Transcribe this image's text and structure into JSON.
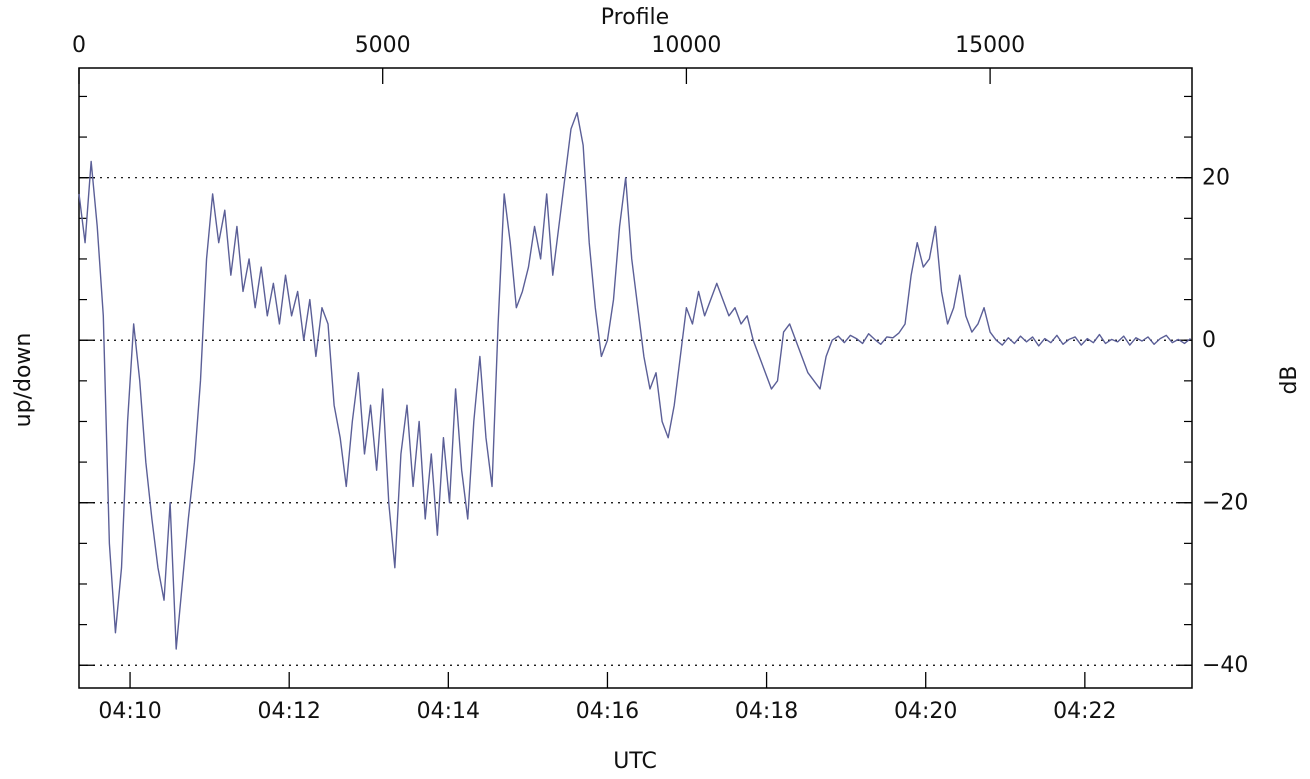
{
  "chart_data": {
    "type": "line",
    "x_label_top": "Profile",
    "x_label": "UTC",
    "y_label": "up/down",
    "y2_label": "dB",
    "color": "#5b5f97",
    "grid": true,
    "x": [
      0,
      100,
      200,
      300,
      400,
      500,
      600,
      700,
      800,
      900,
      1000,
      1100,
      1200,
      1300,
      1400,
      1500,
      1600,
      1700,
      1800,
      1900,
      2000,
      2100,
      2200,
      2300,
      2400,
      2500,
      2600,
      2700,
      2800,
      2900,
      3000,
      3100,
      3200,
      3300,
      3400,
      3500,
      3600,
      3700,
      3800,
      3900,
      4000,
      4100,
      4200,
      4300,
      4400,
      4500,
      4600,
      4700,
      4800,
      4900,
      5000,
      5100,
      5200,
      5300,
      5400,
      5500,
      5600,
      5700,
      5800,
      5900,
      6000,
      6100,
      6200,
      6300,
      6400,
      6500,
      6600,
      6700,
      6800,
      6900,
      7000,
      7100,
      7200,
      7300,
      7400,
      7500,
      7600,
      7700,
      7800,
      7900,
      8000,
      8100,
      8200,
      8300,
      8400,
      8500,
      8600,
      8700,
      8800,
      8900,
      9000,
      9100,
      9200,
      9300,
      9400,
      9500,
      9600,
      9700,
      9800,
      9900,
      10000,
      10100,
      10200,
      10300,
      10400,
      10500,
      10600,
      10700,
      10800,
      10900,
      11000,
      11100,
      11200,
      11300,
      11400,
      11500,
      11600,
      11700,
      11800,
      11900,
      12000,
      12100,
      12200,
      12300,
      12400,
      12500,
      12600,
      12700,
      12800,
      12900,
      13000,
      13100,
      13200,
      13300,
      13400,
      13500,
      13600,
      13700,
      13800,
      13900,
      14000,
      14100,
      14200,
      14300,
      14400,
      14500,
      14600,
      14700,
      14800,
      14900,
      15000,
      15100,
      15200,
      15300,
      15400,
      15500,
      15600,
      15700,
      15800,
      15900,
      16000,
      16100,
      16200,
      16300,
      16400,
      16500,
      16600,
      16700,
      16800,
      16900,
      17000,
      17100,
      17200,
      17300,
      17400,
      17500,
      17600,
      17700,
      17800,
      17900,
      18000,
      18100,
      18200,
      18300
    ],
    "values": [
      18,
      12,
      22,
      14,
      3,
      -25,
      -36,
      -28,
      -10,
      2,
      -5,
      -15,
      -22,
      -28,
      -32,
      -20,
      -38,
      -30,
      -22,
      -15,
      -5,
      10,
      18,
      12,
      16,
      8,
      14,
      6,
      10,
      4,
      9,
      3,
      7,
      2,
      8,
      3,
      6,
      0,
      5,
      -2,
      4,
      2,
      -8,
      -12,
      -18,
      -10,
      -4,
      -14,
      -8,
      -16,
      -6,
      -20,
      -28,
      -14,
      -8,
      -18,
      -10,
      -22,
      -14,
      -24,
      -12,
      -20,
      -6,
      -16,
      -22,
      -10,
      -2,
      -12,
      -18,
      2,
      18,
      12,
      4,
      6,
      9,
      14,
      10,
      18,
      8,
      14,
      20,
      26,
      28,
      24,
      12,
      4,
      -2,
      0,
      5,
      14,
      20,
      10,
      4,
      -2,
      -6,
      -4,
      -10,
      -12,
      -8,
      -2,
      4,
      2,
      6,
      3,
      5,
      7,
      5,
      3,
      4,
      2,
      3,
      0,
      -2,
      -4,
      -6,
      -5,
      1,
      2,
      0,
      -2,
      -4,
      -5,
      -6,
      -2,
      0,
      0.5,
      -0.3,
      0.6,
      0.2,
      -0.4,
      0.8,
      0.1,
      -0.5,
      0.4,
      0.3,
      0.9,
      2,
      8,
      12,
      9,
      10,
      14,
      6,
      2,
      4,
      8,
      3,
      1,
      2,
      4,
      1,
      0,
      -0.6,
      0.3,
      -0.4,
      0.5,
      -0.2,
      0.4,
      -0.7,
      0.2,
      -0.3,
      0.6,
      -0.5,
      0.1,
      0.4,
      -0.6,
      0.2,
      -0.3,
      0.7,
      -0.4,
      0.1,
      -0.2,
      0.5,
      -0.6,
      0.3,
      -0.1,
      0.4,
      -0.5,
      0.2,
      0.6,
      -0.3,
      0.1,
      -0.4,
      0.2
    ],
    "xlim": [
      0,
      18324
    ],
    "xticks": [
      0,
      5000,
      10000,
      15000
    ],
    "x2lim": [
      14961.5,
      15800.8
    ],
    "x2ticks": [
      {
        "value": 15000,
        "label": "04:10"
      },
      {
        "value": 15120,
        "label": "04:12"
      },
      {
        "value": 15240,
        "label": "04:14"
      },
      {
        "value": 15360,
        "label": "04:16"
      },
      {
        "value": 15480,
        "label": "04:18"
      },
      {
        "value": 15600,
        "label": "04:20"
      },
      {
        "value": 15720,
        "label": "04:22"
      }
    ],
    "ylim": [
      -42.8,
      33.5
    ],
    "yticks": [
      {
        "value": -40,
        "label": "−40"
      },
      {
        "value": -20,
        "label": "−20"
      },
      0,
      20
    ],
    "yminorticks": [
      -40,
      -35,
      -30,
      -25,
      -20,
      -15,
      -10,
      -5,
      0,
      5,
      10,
      15,
      20,
      25,
      30
    ]
  }
}
